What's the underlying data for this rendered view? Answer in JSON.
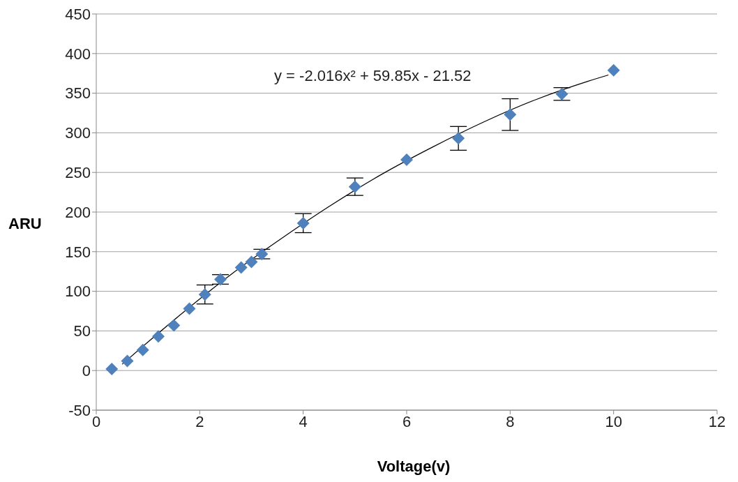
{
  "chart_data": {
    "type": "scatter",
    "xlabel": "Voltage(v)",
    "ylabel": "ARU",
    "annotations": [
      "y = -2.016x² + 59.85x - 21.52"
    ],
    "xlim": [
      0,
      12
    ],
    "xticks": [
      0,
      2,
      4,
      6,
      8,
      10,
      12
    ],
    "ylim": [
      -50,
      450
    ],
    "yticks": [
      -50,
      0,
      50,
      100,
      150,
      200,
      250,
      300,
      350,
      400,
      450
    ],
    "grid": "y",
    "legend": false,
    "marker": "diamond",
    "series": [
      {
        "color": "#4f81bd",
        "x": [
          0.3,
          0.6,
          0.9,
          1.2,
          1.5,
          1.8,
          2.1,
          2.4,
          2.8,
          3.0,
          3.2,
          4,
          5,
          6,
          7,
          8,
          9,
          10
        ],
        "values": [
          2,
          12,
          26,
          43,
          57,
          78,
          96,
          115,
          130,
          137,
          147,
          186,
          232,
          266,
          293,
          323,
          349,
          379
        ],
        "errors": [
          null,
          null,
          null,
          null,
          null,
          null,
          12,
          6,
          null,
          null,
          6,
          12,
          11,
          null,
          15,
          20,
          8,
          null
        ]
      },
      {
        "type": "line",
        "color": "#000000",
        "marker": "none",
        "x": [
          0.5,
          1,
          1.6,
          2.6,
          3.5,
          4.5,
          5.5,
          6.5,
          7.5,
          8.5,
          9.5,
          9.9
        ],
        "values": [
          8,
          36,
          69,
          121,
          163,
          207,
          247,
          282,
          314,
          342,
          365,
          373
        ]
      }
    ]
  }
}
